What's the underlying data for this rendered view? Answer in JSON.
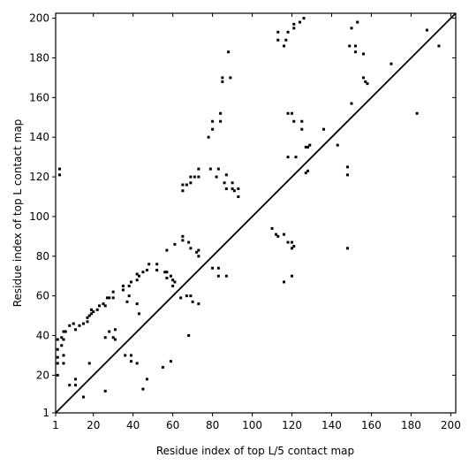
{
  "chart_data": {
    "type": "scatter",
    "xlabel": "Residue index of top L/5 contact map",
    "ylabel": "Residue index of top L contact map",
    "xlim": [
      1,
      202.5
    ],
    "ylim": [
      1,
      202.5
    ],
    "xticks": [
      1,
      20,
      40,
      60,
      80,
      100,
      120,
      140,
      160,
      180,
      200
    ],
    "yticks": [
      1,
      20,
      40,
      60,
      80,
      100,
      120,
      140,
      160,
      180,
      200
    ],
    "diagonal": true,
    "series": [
      {
        "color": "#000000",
        "x": [
          3,
          3,
          2,
          4,
          5,
          6,
          5,
          8,
          10,
          11,
          13,
          15,
          17,
          17,
          18,
          19,
          19,
          20,
          22,
          23,
          25,
          26,
          27,
          28,
          30,
          30,
          35,
          35,
          38,
          39,
          42,
          42,
          43,
          45,
          47,
          48,
          52,
          52,
          56,
          57,
          57,
          59,
          60,
          61,
          57,
          65,
          65,
          68,
          69,
          72,
          73,
          73,
          73,
          73,
          69,
          69,
          71,
          65,
          65,
          67,
          78,
          80,
          80,
          79,
          83,
          82,
          84,
          84,
          87,
          86,
          87,
          90,
          90,
          91,
          93,
          93,
          85,
          85,
          89,
          88,
          113,
          113,
          116,
          118,
          117,
          121,
          121,
          124,
          126,
          118,
          120,
          121,
          125,
          125,
          127,
          128,
          129,
          122,
          118,
          127,
          128,
          136,
          143,
          148,
          148,
          149,
          150,
          152,
          152,
          153,
          156,
          150,
          156,
          157,
          158,
          170,
          183,
          188,
          194,
          148,
          8,
          11,
          11,
          15,
          18,
          26,
          26,
          30,
          28,
          31,
          31,
          36,
          39,
          39,
          37,
          38,
          42,
          43,
          42,
          45,
          47,
          55,
          59,
          60,
          61,
          64,
          67,
          69,
          70,
          73,
          68,
          80,
          83,
          83,
          87,
          110,
          112,
          113,
          116,
          118,
          120,
          120,
          121,
          116,
          120,
          2,
          2,
          2,
          5,
          4,
          5,
          2
        ],
        "y": [
          124,
          121,
          38,
          39,
          42,
          42,
          38,
          45,
          46,
          43,
          45,
          46,
          47,
          49,
          50,
          51,
          53,
          52,
          53,
          55,
          56,
          55,
          59,
          59,
          59,
          62,
          63,
          65,
          65,
          67,
          68,
          71,
          70,
          72,
          73,
          76,
          73,
          76,
          72,
          72,
          69,
          70,
          68,
          86,
          83,
          88,
          90,
          87,
          84,
          82,
          83,
          80,
          124,
          120,
          117,
          120,
          120,
          116,
          113,
          116,
          140,
          144,
          148,
          124,
          124,
          120,
          148,
          152,
          121,
          117,
          114,
          114,
          117,
          113,
          110,
          114,
          168,
          170,
          170,
          183,
          189,
          193,
          186,
          193,
          189,
          197,
          195,
          198,
          200,
          152,
          152,
          148,
          148,
          144,
          135,
          135,
          136,
          130,
          130,
          122,
          123,
          144,
          136,
          125,
          121,
          186,
          195,
          186,
          183,
          198,
          182,
          157,
          170,
          168,
          167,
          177,
          152,
          194,
          186,
          84,
          15,
          15,
          18,
          9,
          26,
          12,
          39,
          39,
          42,
          43,
          38,
          30,
          30,
          27,
          57,
          60,
          56,
          51,
          26,
          13,
          18,
          24,
          27,
          65,
          67,
          59,
          60,
          60,
          57,
          56,
          40,
          74,
          74,
          70,
          70,
          94,
          91,
          90,
          91,
          87,
          87,
          84,
          85,
          67,
          70,
          26,
          29,
          33,
          26,
          35,
          30,
          20
        ]
      }
    ]
  }
}
